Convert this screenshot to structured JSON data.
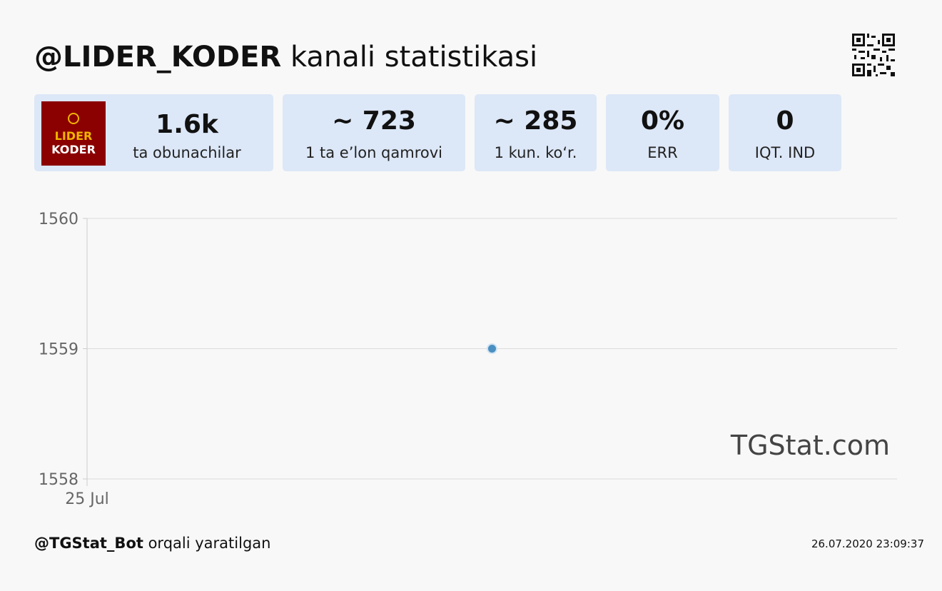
{
  "header": {
    "channel": "@LIDER_KODER",
    "title_rest": " kanali statistikasi"
  },
  "logo": {
    "line1": "LIDER",
    "line2": "KODER"
  },
  "cards": [
    {
      "value": "1.6k",
      "label": "ta obunachilar"
    },
    {
      "value": "~ 723",
      "label": "1 ta e’lon qamrovi"
    },
    {
      "value": "~ 285",
      "label": "1 kun. ko‘r."
    },
    {
      "value": "0%",
      "label": "ERR"
    },
    {
      "value": "0",
      "label": "IQT. IND"
    }
  ],
  "chart_data": {
    "type": "line",
    "categories": [
      "25 Jul"
    ],
    "values": [
      1559
    ],
    "color": "#4a8fc1",
    "ylim": [
      1558,
      1560
    ],
    "yticks": [
      1558,
      1559,
      1560
    ],
    "grid": true,
    "watermark": "TGStat.com"
  },
  "footer": {
    "bot": "@TGStat_Bot",
    "text": " orqali yaratilgan",
    "timestamp": "26.07.2020 23:09:37"
  }
}
